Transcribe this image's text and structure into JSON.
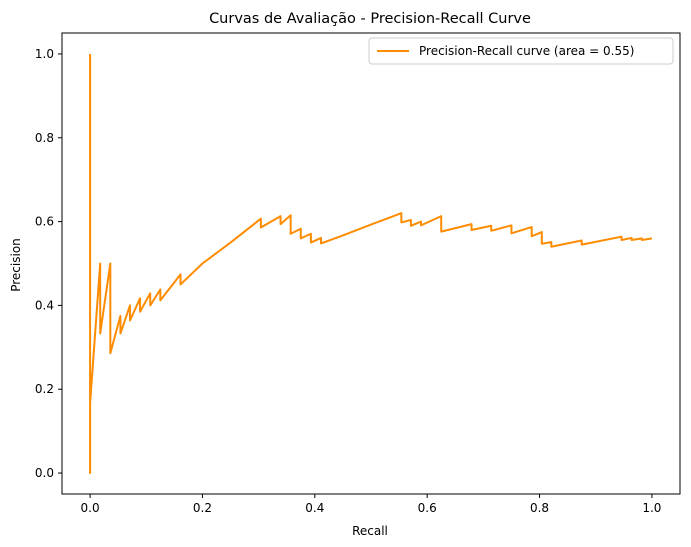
{
  "chart_data": {
    "type": "line",
    "title": "Curvas de Avaliação - Precision-Recall Curve",
    "xlabel": "Recall",
    "ylabel": "Precision",
    "xlim": [
      -0.05,
      1.05
    ],
    "ylim": [
      -0.05,
      1.05
    ],
    "xticks": [
      0.0,
      0.2,
      0.4,
      0.6,
      0.8,
      1.0
    ],
    "xtick_labels": [
      "0.0",
      "0.2",
      "0.4",
      "0.6",
      "0.8",
      "1.0"
    ],
    "yticks": [
      0.0,
      0.2,
      0.4,
      0.6,
      0.8,
      1.0
    ],
    "ytick_labels": [
      "0.0",
      "0.2",
      "0.4",
      "0.6",
      "0.8",
      "1.0"
    ],
    "grid": false,
    "legend_position": "top-right",
    "series": [
      {
        "name": "Precision-Recall curve (area = 0.55)",
        "color": "#ff8c00",
        "x": [
          0.0,
          0.0,
          0.0,
          0.018,
          0.018,
          0.036,
          0.036,
          0.054,
          0.054,
          0.071,
          0.071,
          0.089,
          0.089,
          0.107,
          0.107,
          0.125,
          0.125,
          0.161,
          0.161,
          0.2,
          0.25,
          0.304,
          0.304,
          0.339,
          0.339,
          0.357,
          0.357,
          0.375,
          0.375,
          0.393,
          0.393,
          0.411,
          0.411,
          0.45,
          0.5,
          0.554,
          0.554,
          0.571,
          0.571,
          0.589,
          0.589,
          0.625,
          0.625,
          0.679,
          0.679,
          0.714,
          0.714,
          0.75,
          0.75,
          0.786,
          0.786,
          0.804,
          0.804,
          0.821,
          0.821,
          0.875,
          0.875,
          0.946,
          0.946,
          0.964,
          0.964,
          0.982,
          0.982,
          1.0
        ],
        "y": [
          1.0,
          0.0,
          0.167,
          0.5,
          0.333,
          0.5,
          0.286,
          0.375,
          0.333,
          0.4,
          0.364,
          0.417,
          0.385,
          0.429,
          0.4,
          0.438,
          0.412,
          0.474,
          0.45,
          0.5,
          0.55,
          0.607,
          0.586,
          0.613,
          0.594,
          0.615,
          0.571,
          0.583,
          0.56,
          0.571,
          0.55,
          0.561,
          0.548,
          0.567,
          0.593,
          0.62,
          0.598,
          0.604,
          0.59,
          0.6,
          0.591,
          0.613,
          0.576,
          0.594,
          0.58,
          0.59,
          0.578,
          0.591,
          0.572,
          0.587,
          0.565,
          0.575,
          0.547,
          0.551,
          0.54,
          0.555,
          0.545,
          0.564,
          0.556,
          0.561,
          0.556,
          0.56,
          0.556,
          0.56
        ]
      }
    ]
  }
}
